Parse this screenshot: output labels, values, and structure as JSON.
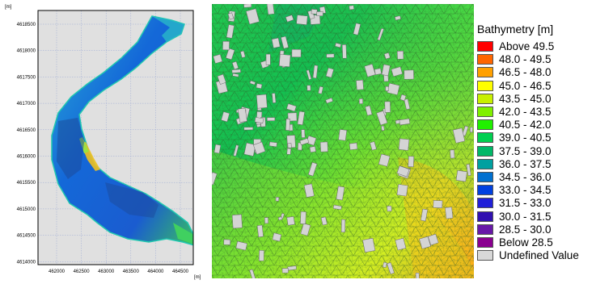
{
  "left_map": {
    "axis_unit_y": "[m]",
    "axis_unit_x": "[m]",
    "y_ticks": [
      "4618500",
      "4618000",
      "4617500",
      "4617000",
      "4616500",
      "4616000",
      "4615500",
      "4615000",
      "4614500",
      "4614000"
    ],
    "x_ticks": [
      "462000",
      "462500",
      "463000",
      "463500",
      "464000",
      "464500"
    ],
    "colors": {
      "background": "#e0e0e0",
      "grid": "#9aa8d4",
      "domain_fill": "#1e78d8",
      "domain_edge": "#22c2b0",
      "shallow": "#8ee040",
      "warm": "#f0c020"
    }
  },
  "right_map": {
    "colors": {
      "mesh_line": "#3a6a30",
      "building": "#d4d4d4"
    }
  },
  "legend": {
    "title": "Bathymetry [m]",
    "items": [
      {
        "label": "Above 49.5",
        "color": "#ff0000"
      },
      {
        "label": "48.0 - 49.5",
        "color": "#ff6600"
      },
      {
        "label": "46.5 - 48.0",
        "color": "#ffa000"
      },
      {
        "label": "45.0 - 46.5",
        "color": "#ffff00"
      },
      {
        "label": "43.5 - 45.0",
        "color": "#c8f000"
      },
      {
        "label": "42.0 - 43.5",
        "color": "#80f000"
      },
      {
        "label": "40.5 - 42.0",
        "color": "#20f000"
      },
      {
        "label": "39.0 - 40.5",
        "color": "#00d050"
      },
      {
        "label": "37.5 - 39.0",
        "color": "#00b868"
      },
      {
        "label": "36.0 - 37.5",
        "color": "#00a0a0"
      },
      {
        "label": "34.5 - 36.0",
        "color": "#0070d0"
      },
      {
        "label": "33.0 - 34.5",
        "color": "#0040e0"
      },
      {
        "label": "31.5 - 33.0",
        "color": "#2020d8"
      },
      {
        "label": "30.0 - 31.5",
        "color": "#3010b0"
      },
      {
        "label": "28.5 - 30.0",
        "color": "#6818a8"
      },
      {
        "label": "Below 28.5",
        "color": "#8a0090"
      },
      {
        "label": "Undefined Value",
        "color": "#d8d8d8"
      }
    ]
  }
}
